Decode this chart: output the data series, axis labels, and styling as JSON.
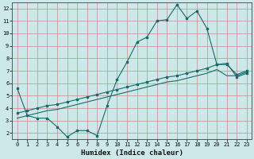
{
  "xlabel": "Humidex (Indice chaleur)",
  "bg_color": "#cce8e8",
  "line_color": "#1a6b6b",
  "grid_color": "#cc8888",
  "xlim": [
    -0.5,
    23.5
  ],
  "ylim": [
    1.5,
    12.5
  ],
  "xticks": [
    0,
    1,
    2,
    3,
    4,
    5,
    6,
    7,
    8,
    9,
    10,
    11,
    12,
    13,
    14,
    15,
    16,
    17,
    18,
    19,
    20,
    21,
    22,
    23
  ],
  "yticks": [
    2,
    3,
    4,
    5,
    6,
    7,
    8,
    9,
    10,
    11,
    12
  ],
  "line1_x": [
    0,
    1,
    2,
    3,
    4,
    5,
    6,
    7,
    8,
    9,
    10,
    11,
    12,
    13,
    14,
    15,
    16,
    17,
    18,
    19,
    20,
    21,
    22,
    23
  ],
  "line1_y": [
    5.6,
    3.4,
    3.2,
    3.2,
    2.5,
    1.7,
    2.2,
    2.2,
    1.8,
    4.2,
    6.3,
    7.7,
    9.3,
    9.7,
    11.0,
    11.1,
    12.3,
    11.2,
    11.8,
    10.4,
    7.5,
    7.6,
    6.5,
    6.8
  ],
  "line2_x": [
    0,
    1,
    2,
    3,
    4,
    5,
    6,
    7,
    8,
    9,
    10,
    11,
    12,
    13,
    14,
    15,
    16,
    17,
    18,
    19,
    20,
    21,
    22,
    23
  ],
  "line2_y": [
    3.6,
    3.8,
    4.0,
    4.2,
    4.3,
    4.5,
    4.7,
    4.9,
    5.1,
    5.3,
    5.5,
    5.7,
    5.9,
    6.1,
    6.3,
    6.5,
    6.6,
    6.8,
    7.0,
    7.2,
    7.5,
    7.5,
    6.7,
    7.0
  ],
  "line3_x": [
    0,
    1,
    2,
    3,
    4,
    5,
    6,
    7,
    8,
    9,
    10,
    11,
    12,
    13,
    14,
    15,
    16,
    17,
    18,
    19,
    20,
    21,
    22,
    23
  ],
  "line3_y": [
    3.2,
    3.4,
    3.6,
    3.8,
    3.9,
    4.1,
    4.3,
    4.5,
    4.7,
    4.9,
    5.1,
    5.3,
    5.5,
    5.7,
    5.9,
    6.1,
    6.2,
    6.4,
    6.6,
    6.8,
    7.1,
    6.6,
    6.6,
    6.9
  ],
  "tick_fontsize": 5,
  "xlabel_fontsize": 6.5
}
